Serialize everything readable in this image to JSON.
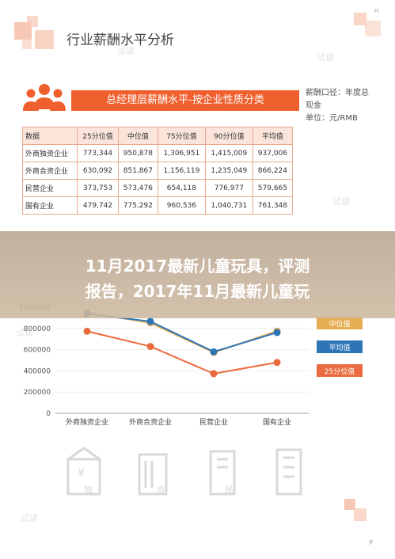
{
  "header": {
    "title": "行业薪酬水平分析",
    "corner_mark": "H"
  },
  "banner": {
    "title": "总经理层薪酬水平-按企业性质分类",
    "meta_caliber": "薪酬口径：年度总现金",
    "meta_unit": "单位：元/RMB"
  },
  "table": {
    "headers": [
      "数据",
      "25分位值",
      "中位值",
      "75分位值",
      "90分位值",
      "平均值"
    ],
    "rows": [
      [
        "外商独资企业",
        "773,344",
        "950,878",
        "1,306,951",
        "1,415,009",
        "937,006"
      ],
      [
        "外商合资企业",
        "630,092",
        "851,867",
        "1,156,119",
        "1,235,049",
        "866,224"
      ],
      [
        "民营企业",
        "373,753",
        "573,476",
        "654,118",
        "776,977",
        "579,665"
      ],
      [
        "国有企业",
        "479,742",
        "775,292",
        "960,536",
        "1,040,731",
        "761,348"
      ]
    ]
  },
  "overlay": {
    "line1": "11月2017最新儿童玩具，评测",
    "line2": "报告，2017年11月最新儿童玩"
  },
  "chart_data": {
    "type": "line",
    "categories": [
      "外商独资企业",
      "外商合资企业",
      "民营企业",
      "国有企业"
    ],
    "y_ticks": [
      "1000000",
      "800000",
      "600000",
      "400000",
      "200000",
      "0"
    ],
    "ylim": [
      0,
      1000000
    ],
    "series": [
      {
        "name": "中位值",
        "color": "#e6ad55",
        "values": [
          950878,
          851867,
          573476,
          775292
        ]
      },
      {
        "name": "平均值",
        "color": "#2e75b6",
        "values": [
          937006,
          866224,
          579665,
          761348
        ]
      },
      {
        "name": "25分位值",
        "color": "#ea6b3f",
        "values": [
          773344,
          630092,
          373753,
          479742
        ]
      }
    ],
    "legend_position": "right"
  },
  "bottom_icons": [
    {
      "icon": "foreign-owned-building-icon",
      "char": "独"
    },
    {
      "icon": "joint-venture-building-icon",
      "char": "合"
    },
    {
      "icon": "private-building-icon",
      "char": "民"
    },
    {
      "icon": "state-owned-building-icon",
      "char": ""
    }
  ],
  "footer": {
    "page_mark": "P"
  },
  "watermark_text": "试读"
}
